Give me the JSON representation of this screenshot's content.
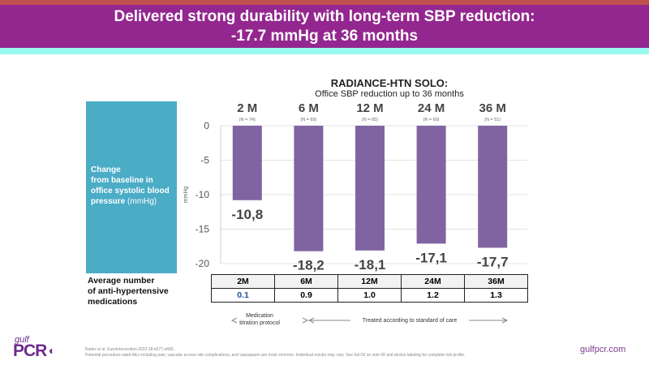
{
  "header": {
    "title_line1": "Delivered strong durability with long-term SBP reduction:",
    "title_line2": "-17.7 mmHg at 36 months"
  },
  "left_panel": {
    "line1": "Change",
    "line2": "from baseline in",
    "line3": "office systolic blood",
    "line4_bold": "pressure",
    "line4_unit": "(mmHg)"
  },
  "avg_label": {
    "line1": "Average number",
    "line2": "of anti-hypertensive",
    "line3": "medications"
  },
  "chart_data": {
    "type": "bar",
    "title": "RADIANCE-HTN SOLO:",
    "subtitle": "Office SBP reduction up to 36 months",
    "ylabel": "mmHg",
    "xlabel": "",
    "ylim": [
      -20,
      0
    ],
    "yticks": [
      "0",
      "-5",
      "-10",
      "-15",
      "-20"
    ],
    "ytick_values": [
      0,
      -5,
      -10,
      -15,
      -20
    ],
    "grid": true,
    "categories": [
      "2 M",
      "6 M",
      "12 M",
      "24 M",
      "36 M"
    ],
    "n_labels": [
      "(N = 74)",
      "(N = 69)",
      "(N = 65)",
      "(N = 60)",
      "(N = 51)"
    ],
    "values": [
      -10.8,
      -18.2,
      -18.1,
      -17.1,
      -17.7
    ],
    "data_labels": [
      "-10,8",
      "-18,2",
      "-18,1",
      "-17,1",
      "-17,7"
    ],
    "bar_color": "#8064a2"
  },
  "med_table": {
    "headers": [
      "2M",
      "6M",
      "12M",
      "24M",
      "36M"
    ],
    "values": [
      "0.1",
      "0.9",
      "1.0",
      "1.2",
      "1.3"
    ],
    "first_value_color": "#1f4e99"
  },
  "annotations": {
    "titration": "Medication titration protocol",
    "standard": "Treated according to standard of care"
  },
  "footer": {
    "citation": "Rader et al. EuroIntervention.2022;18:e677-e685.",
    "disclaimer": "Potential procedure-rated AEs including pain, vascular access site complications, and vasospasm are most common. Individual results may vary. See full ISI on side 58 and device labeling for complete risk profile.",
    "site": "gulfpcr.com",
    "logo_top": "gulf",
    "logo_main": "PCR",
    "logo_mark": "◐"
  }
}
